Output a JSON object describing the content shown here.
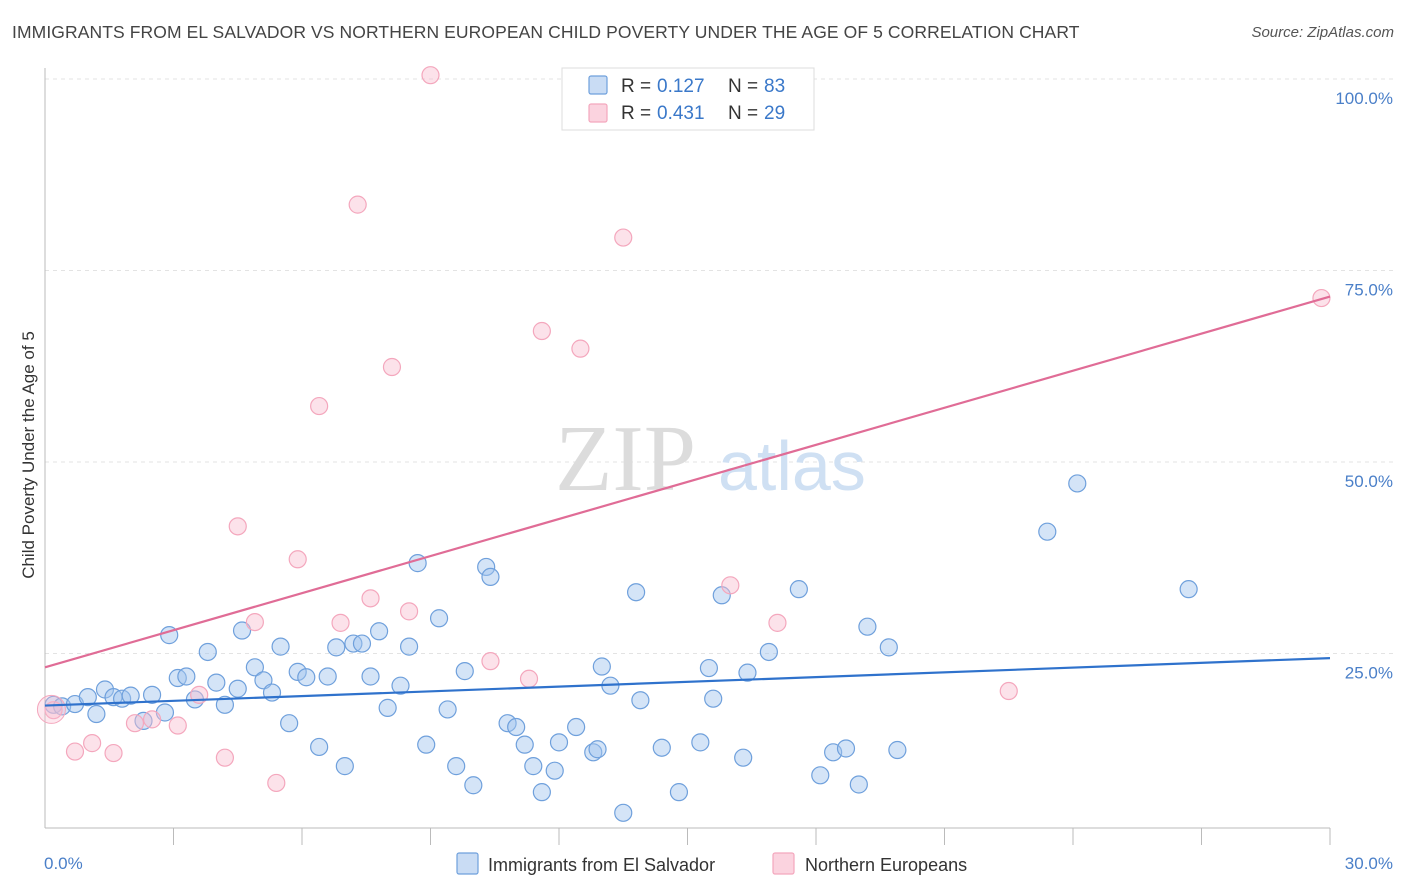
{
  "title": "IMMIGRANTS FROM EL SALVADOR VS NORTHERN EUROPEAN CHILD POVERTY UNDER THE AGE OF 5 CORRELATION CHART",
  "source": "Source: ZipAtlas.com",
  "watermark": {
    "zip": "ZIP",
    "atlas": "atlas"
  },
  "colors": {
    "blue": "#6fa0dc",
    "blue_line": "#2f72cc",
    "pink": "#f4a7bd",
    "pink_line": "#e06c96",
    "tick_text": "#4a7fc8"
  },
  "legend": {
    "rows": [
      {
        "r_label": "R = ",
        "r_value": "0.127",
        "n_label": "N = ",
        "n_value": "83"
      },
      {
        "r_label": "R = ",
        "r_value": "0.431",
        "n_label": "N = ",
        "n_value": "29"
      }
    ]
  },
  "chart_data": {
    "type": "scatter",
    "title": "IMMIGRANTS FROM EL SALVADOR VS NORTHERN EUROPEAN CHILD POVERTY UNDER THE AGE OF 5 CORRELATION CHART",
    "xlabel": "",
    "ylabel": "Child Poverty Under the Age of 5",
    "xlim": [
      0,
      30
    ],
    "ylim": [
      0,
      100
    ],
    "x_tick_labels": [
      "0.0%",
      "30.0%"
    ],
    "y_tick_labels": [
      "100.0%",
      "75.0%",
      "50.0%",
      "25.0%"
    ],
    "y_tick_values": [
      100,
      75,
      50,
      25
    ],
    "grid": true,
    "legend_position": "top-center",
    "series": [
      {
        "name": "Immigrants from El Salvador",
        "color": "#6fa0dc",
        "trend": {
          "x": [
            0,
            30
          ],
          "y": [
            18.2,
            24.4
          ]
        },
        "points": [
          [
            0.2,
            18.3
          ],
          [
            0.4,
            18.1
          ],
          [
            0.7,
            18.4
          ],
          [
            1.0,
            19.3
          ],
          [
            1.2,
            17.1
          ],
          [
            1.4,
            20.3
          ],
          [
            1.6,
            19.3
          ],
          [
            1.8,
            19.1
          ],
          [
            2.0,
            19.5
          ],
          [
            2.3,
            16.2
          ],
          [
            2.5,
            19.6
          ],
          [
            2.8,
            17.3
          ],
          [
            2.9,
            27.4
          ],
          [
            3.1,
            21.8
          ],
          [
            3.3,
            22.0
          ],
          [
            3.5,
            19.0
          ],
          [
            3.8,
            25.2
          ],
          [
            4.0,
            21.2
          ],
          [
            4.2,
            18.3
          ],
          [
            4.5,
            20.4
          ],
          [
            4.6,
            28.0
          ],
          [
            4.9,
            23.2
          ],
          [
            5.1,
            21.5
          ],
          [
            5.3,
            19.9
          ],
          [
            5.5,
            25.9
          ],
          [
            5.7,
            15.9
          ],
          [
            5.9,
            22.6
          ],
          [
            6.1,
            21.9
          ],
          [
            6.4,
            12.8
          ],
          [
            6.6,
            22.0
          ],
          [
            6.8,
            25.8
          ],
          [
            7.0,
            10.3
          ],
          [
            7.2,
            26.3
          ],
          [
            7.4,
            26.3
          ],
          [
            7.6,
            22.0
          ],
          [
            7.8,
            27.9
          ],
          [
            8.0,
            17.9
          ],
          [
            8.3,
            20.8
          ],
          [
            8.5,
            25.9
          ],
          [
            8.7,
            36.8
          ],
          [
            8.9,
            13.1
          ],
          [
            9.2,
            29.6
          ],
          [
            9.4,
            17.7
          ],
          [
            9.6,
            10.3
          ],
          [
            9.8,
            22.7
          ],
          [
            10.0,
            7.8
          ],
          [
            10.3,
            36.3
          ],
          [
            10.4,
            35.0
          ],
          [
            10.8,
            15.9
          ],
          [
            11.0,
            15.4
          ],
          [
            11.2,
            13.1
          ],
          [
            11.4,
            10.3
          ],
          [
            11.6,
            6.9
          ],
          [
            11.9,
            9.7
          ],
          [
            12.0,
            13.4
          ],
          [
            12.4,
            15.4
          ],
          [
            12.8,
            12.1
          ],
          [
            13.0,
            23.3
          ],
          [
            13.2,
            20.8
          ],
          [
            13.5,
            4.2
          ],
          [
            13.9,
            18.9
          ],
          [
            14.4,
            12.7
          ],
          [
            14.8,
            6.9
          ],
          [
            15.3,
            13.4
          ],
          [
            15.5,
            23.1
          ],
          [
            15.6,
            19.1
          ],
          [
            15.8,
            32.6
          ],
          [
            16.3,
            11.4
          ],
          [
            16.4,
            22.5
          ],
          [
            16.9,
            25.2
          ],
          [
            17.6,
            33.4
          ],
          [
            18.4,
            12.1
          ],
          [
            18.7,
            12.6
          ],
          [
            19.0,
            7.9
          ],
          [
            19.2,
            28.5
          ],
          [
            19.7,
            25.8
          ],
          [
            19.9,
            12.4
          ],
          [
            23.4,
            40.9
          ],
          [
            24.1,
            47.2
          ],
          [
            26.7,
            33.4
          ],
          [
            13.8,
            33.0
          ],
          [
            12.9,
            12.5
          ],
          [
            18.1,
            9.1
          ]
        ]
      },
      {
        "name": "Northern Europeans",
        "color": "#f4a7bd",
        "trend": {
          "x": [
            0,
            30
          ],
          "y": [
            23.2,
            71.6
          ]
        },
        "points": [
          [
            0.2,
            17.6
          ],
          [
            0.7,
            12.2
          ],
          [
            1.1,
            13.3
          ],
          [
            1.6,
            12.0
          ],
          [
            2.1,
            15.9
          ],
          [
            2.5,
            16.4
          ],
          [
            3.1,
            15.6
          ],
          [
            3.6,
            19.6
          ],
          [
            4.2,
            11.4
          ],
          [
            4.5,
            41.6
          ],
          [
            4.9,
            29.1
          ],
          [
            5.4,
            8.1
          ],
          [
            5.9,
            37.3
          ],
          [
            6.4,
            57.3
          ],
          [
            6.9,
            29.0
          ],
          [
            7.3,
            83.6
          ],
          [
            7.6,
            32.2
          ],
          [
            8.1,
            62.4
          ],
          [
            8.5,
            30.5
          ],
          [
            9.0,
            100.5
          ],
          [
            10.4,
            24.0
          ],
          [
            11.3,
            21.7
          ],
          [
            11.6,
            67.1
          ],
          [
            12.5,
            64.8
          ],
          [
            13.5,
            79.3
          ],
          [
            16.0,
            33.9
          ],
          [
            17.1,
            29.0
          ],
          [
            22.5,
            20.1
          ],
          [
            29.8,
            71.4
          ]
        ]
      }
    ]
  },
  "bottom_legend": [
    "Immigrants from El Salvador",
    "Northern Europeans"
  ]
}
